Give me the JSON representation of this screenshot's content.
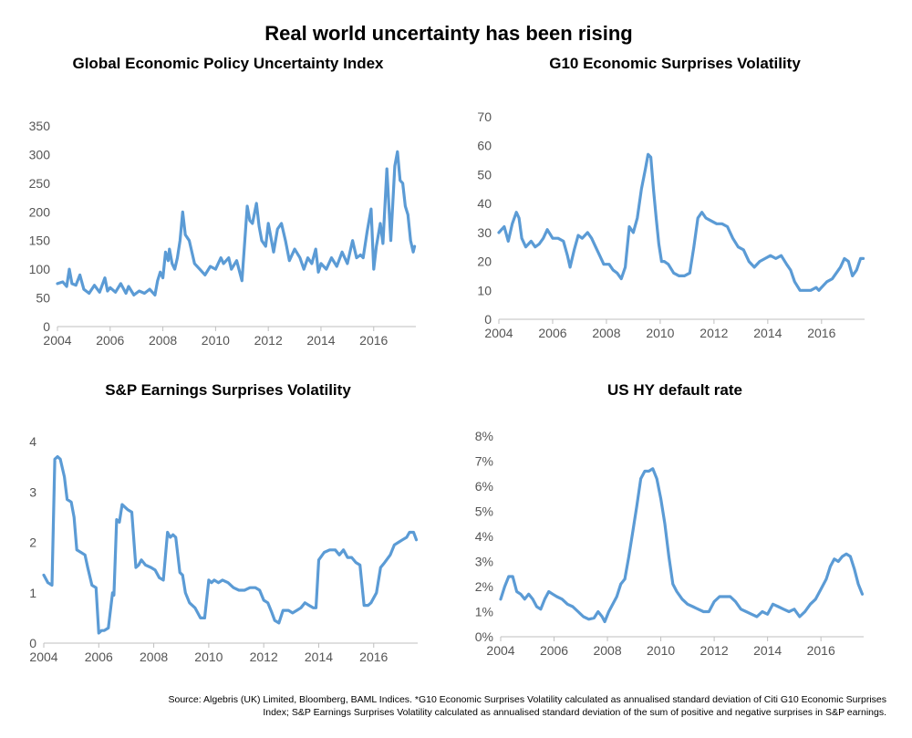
{
  "title": "Real world uncertainty has been rising",
  "footnote_line1": "Source: Algebris (UK) Limited, Bloomberg, BAML Indices. *G10 Economic Surprises Volatility calculated as annualised standard deviation of Citi G10 Economic Surprises",
  "footnote_line2": "Index; S&P Earnings Surprises Volatility calculated as annualised standard deviation of the sum of positive and negative surprises in S&P earnings.",
  "colors": {
    "line": "#5b9bd5",
    "axis": "#bfbfbf",
    "tick_text": "#555555"
  },
  "chart_data": [
    {
      "type": "line",
      "title": "Global Economic Policy Uncertainty Index",
      "xlim": [
        2004,
        2017.6
      ],
      "ylim": [
        0,
        350
      ],
      "x_ticks": [
        2004,
        2006,
        2008,
        2010,
        2012,
        2014,
        2016
      ],
      "y_ticks": [
        0,
        50,
        100,
        150,
        200,
        250,
        300,
        350
      ],
      "y_tick_labels": [
        "0",
        "50",
        "100",
        "150",
        "200",
        "250",
        "300",
        "350"
      ],
      "x_tick_labels": [
        "2004",
        "2006",
        "2008",
        "2010",
        "2012",
        "2014",
        "2016"
      ],
      "series": [
        {
          "x": [
            2004.0,
            2004.2,
            2004.35,
            2004.45,
            2004.55,
            2004.7,
            2004.85,
            2005.0,
            2005.2,
            2005.4,
            2005.6,
            2005.8,
            2005.9,
            2006.0,
            2006.2,
            2006.4,
            2006.6,
            2006.7,
            2006.9,
            2007.1,
            2007.3,
            2007.5,
            2007.7,
            2007.8,
            2007.9,
            2008.0,
            2008.1,
            2008.2,
            2008.25,
            2008.35,
            2008.45,
            2008.55,
            2008.65,
            2008.75,
            2008.85,
            2009.0,
            2009.2,
            2009.4,
            2009.6,
            2009.8,
            2010.0,
            2010.2,
            2010.3,
            2010.5,
            2010.6,
            2010.8,
            2011.0,
            2011.2,
            2011.3,
            2011.4,
            2011.55,
            2011.65,
            2011.75,
            2011.9,
            2012.0,
            2012.2,
            2012.35,
            2012.5,
            2012.65,
            2012.8,
            2013.0,
            2013.2,
            2013.35,
            2013.5,
            2013.65,
            2013.8,
            2013.9,
            2014.0,
            2014.2,
            2014.4,
            2014.6,
            2014.8,
            2015.0,
            2015.2,
            2015.35,
            2015.5,
            2015.6,
            2015.75,
            2015.9,
            2016.0,
            2016.1,
            2016.25,
            2016.35,
            2016.5,
            2016.65,
            2016.8,
            2016.9,
            2017.0,
            2017.1,
            2017.2,
            2017.3,
            2017.4,
            2017.5,
            2017.55
          ],
          "y": [
            75,
            78,
            70,
            100,
            75,
            72,
            90,
            65,
            58,
            72,
            60,
            85,
            62,
            68,
            60,
            75,
            58,
            70,
            55,
            62,
            58,
            65,
            55,
            80,
            95,
            85,
            130,
            115,
            135,
            110,
            100,
            120,
            150,
            200,
            160,
            150,
            110,
            100,
            90,
            105,
            100,
            120,
            110,
            120,
            100,
            115,
            80,
            210,
            185,
            180,
            215,
            175,
            150,
            140,
            180,
            130,
            170,
            180,
            150,
            115,
            135,
            120,
            100,
            120,
            110,
            135,
            95,
            110,
            100,
            120,
            105,
            130,
            110,
            150,
            120,
            125,
            120,
            165,
            205,
            100,
            140,
            180,
            145,
            275,
            150,
            280,
            305,
            255,
            250,
            210,
            195,
            150,
            130,
            140
          ]
        }
      ]
    },
    {
      "type": "line",
      "title": "G10 Economic Surprises Volatility",
      "xlim": [
        2004,
        2017.6
      ],
      "ylim": [
        0,
        70
      ],
      "x_ticks": [
        2004,
        2006,
        2008,
        2010,
        2012,
        2014,
        2016
      ],
      "y_ticks": [
        0,
        10,
        20,
        30,
        40,
        50,
        60,
        70
      ],
      "y_tick_labels": [
        "0",
        "10",
        "20",
        "30",
        "40",
        "50",
        "60",
        "70"
      ],
      "x_tick_labels": [
        "2004",
        "2006",
        "2008",
        "2010",
        "2012",
        "2014",
        "2016"
      ],
      "series": [
        {
          "x": [
            2004.0,
            2004.1,
            2004.2,
            2004.35,
            2004.5,
            2004.65,
            2004.75,
            2004.85,
            2005.0,
            2005.2,
            2005.35,
            2005.5,
            2005.65,
            2005.8,
            2006.0,
            2006.2,
            2006.4,
            2006.55,
            2006.65,
            2006.8,
            2006.95,
            2007.1,
            2007.3,
            2007.45,
            2007.6,
            2007.75,
            2007.9,
            2008.1,
            2008.25,
            2008.4,
            2008.55,
            2008.7,
            2008.85,
            2009.0,
            2009.15,
            2009.3,
            2009.45,
            2009.55,
            2009.65,
            2009.75,
            2009.85,
            2009.95,
            2010.05,
            2010.15,
            2010.3,
            2010.5,
            2010.7,
            2010.9,
            2011.1,
            2011.25,
            2011.4,
            2011.55,
            2011.7,
            2011.9,
            2012.1,
            2012.3,
            2012.5,
            2012.7,
            2012.9,
            2013.1,
            2013.3,
            2013.5,
            2013.7,
            2013.9,
            2014.1,
            2014.3,
            2014.5,
            2014.7,
            2014.85,
            2015.0,
            2015.2,
            2015.4,
            2015.6,
            2015.8,
            2015.9,
            2016.0,
            2016.2,
            2016.4,
            2016.55,
            2016.7,
            2016.85,
            2017.0,
            2017.15,
            2017.3,
            2017.45,
            2017.55
          ],
          "y": [
            30,
            31,
            32,
            27,
            33,
            37,
            35,
            28,
            25,
            27,
            25,
            26,
            28,
            31,
            28,
            28,
            27,
            22,
            18,
            24,
            29,
            28,
            30,
            28,
            25,
            22,
            19,
            19,
            17,
            16,
            14,
            18,
            32,
            30,
            35,
            45,
            52,
            57,
            56,
            45,
            35,
            26,
            20,
            20,
            19,
            16,
            15,
            15,
            16,
            25,
            35,
            37,
            35,
            34,
            33,
            33,
            32,
            28,
            25,
            24,
            20,
            18,
            20,
            21,
            22,
            21,
            22,
            19,
            17,
            13,
            10,
            10,
            10,
            11,
            10,
            11,
            13,
            14,
            16,
            18,
            21,
            20,
            15,
            17,
            21,
            21
          ]
        }
      ]
    },
    {
      "type": "line",
      "title": "S&P Earnings Surprises Volatility",
      "xlim": [
        2004,
        2017.6
      ],
      "ylim": [
        0,
        4
      ],
      "x_ticks": [
        2004,
        2006,
        2008,
        2010,
        2012,
        2014,
        2016
      ],
      "y_ticks": [
        0,
        1,
        2,
        3,
        4
      ],
      "y_tick_labels": [
        "0",
        "1",
        "2",
        "3",
        "4"
      ],
      "x_tick_labels": [
        "2004",
        "2006",
        "2008",
        "2010",
        "2012",
        "2014",
        "2016"
      ],
      "series": [
        {
          "x": [
            2004.0,
            2004.15,
            2004.3,
            2004.4,
            2004.5,
            2004.6,
            2004.75,
            2004.85,
            2005.0,
            2005.1,
            2005.2,
            2005.35,
            2005.5,
            2005.6,
            2005.75,
            2005.9,
            2006.0,
            2006.1,
            2006.2,
            2006.35,
            2006.5,
            2006.55,
            2006.65,
            2006.75,
            2006.85,
            2006.95,
            2007.05,
            2007.2,
            2007.35,
            2007.45,
            2007.55,
            2007.7,
            2007.9,
            2008.05,
            2008.2,
            2008.35,
            2008.5,
            2008.6,
            2008.7,
            2008.8,
            2008.95,
            2009.05,
            2009.15,
            2009.3,
            2009.5,
            2009.7,
            2009.85,
            2010.0,
            2010.1,
            2010.2,
            2010.35,
            2010.5,
            2010.7,
            2010.9,
            2011.1,
            2011.3,
            2011.5,
            2011.7,
            2011.85,
            2012.0,
            2012.15,
            2012.3,
            2012.4,
            2012.55,
            2012.7,
            2012.9,
            2013.05,
            2013.2,
            2013.35,
            2013.5,
            2013.65,
            2013.8,
            2013.9,
            2014.0,
            2014.2,
            2014.4,
            2014.6,
            2014.75,
            2014.9,
            2015.05,
            2015.2,
            2015.35,
            2015.5,
            2015.65,
            2015.8,
            2015.9,
            2016.0,
            2016.1,
            2016.25,
            2016.4,
            2016.6,
            2016.75,
            2016.9,
            2017.05,
            2017.2,
            2017.3,
            2017.45,
            2017.55
          ],
          "y": [
            1.35,
            1.2,
            1.15,
            3.65,
            3.7,
            3.65,
            3.3,
            2.85,
            2.8,
            2.5,
            1.85,
            1.8,
            1.75,
            1.5,
            1.15,
            1.1,
            0.2,
            0.25,
            0.25,
            0.3,
            1.0,
            0.95,
            2.45,
            2.4,
            2.75,
            2.7,
            2.65,
            2.6,
            1.5,
            1.55,
            1.65,
            1.55,
            1.5,
            1.45,
            1.3,
            1.25,
            2.2,
            2.1,
            2.15,
            2.1,
            1.4,
            1.35,
            1.0,
            0.8,
            0.7,
            0.5,
            0.5,
            1.25,
            1.2,
            1.25,
            1.2,
            1.25,
            1.2,
            1.1,
            1.05,
            1.05,
            1.1,
            1.1,
            1.05,
            0.85,
            0.8,
            0.6,
            0.45,
            0.4,
            0.65,
            0.65,
            0.6,
            0.65,
            0.7,
            0.8,
            0.75,
            0.7,
            0.7,
            1.65,
            1.8,
            1.85,
            1.85,
            1.75,
            1.85,
            1.7,
            1.7,
            1.6,
            1.55,
            0.75,
            0.75,
            0.8,
            0.9,
            1.0,
            1.5,
            1.6,
            1.75,
            1.95,
            2.0,
            2.05,
            2.1,
            2.2,
            2.2,
            2.05
          ]
        }
      ]
    },
    {
      "type": "line",
      "title": "US HY default rate",
      "xlim": [
        2004,
        2017.6
      ],
      "ylim": [
        0,
        8
      ],
      "x_ticks": [
        2004,
        2006,
        2008,
        2010,
        2012,
        2014,
        2016
      ],
      "y_ticks": [
        0,
        1,
        2,
        3,
        4,
        5,
        6,
        7,
        8
      ],
      "y_tick_labels": [
        "0%",
        "1%",
        "2%",
        "3%",
        "4%",
        "5%",
        "6%",
        "7%",
        "8%"
      ],
      "x_tick_labels": [
        "2004",
        "2006",
        "2008",
        "2010",
        "2012",
        "2014",
        "2016"
      ],
      "series": [
        {
          "x": [
            2004.0,
            2004.15,
            2004.3,
            2004.45,
            2004.6,
            2004.75,
            2004.9,
            2005.05,
            2005.2,
            2005.35,
            2005.5,
            2005.65,
            2005.8,
            2005.95,
            2006.1,
            2006.3,
            2006.5,
            2006.7,
            2006.9,
            2007.1,
            2007.3,
            2007.5,
            2007.65,
            2007.8,
            2007.9,
            2008.05,
            2008.2,
            2008.35,
            2008.5,
            2008.65,
            2008.8,
            2008.95,
            2009.1,
            2009.25,
            2009.4,
            2009.55,
            2009.7,
            2009.85,
            2010.0,
            2010.15,
            2010.3,
            2010.45,
            2010.6,
            2010.8,
            2011.0,
            2011.2,
            2011.4,
            2011.6,
            2011.8,
            2012.0,
            2012.2,
            2012.4,
            2012.6,
            2012.8,
            2013.0,
            2013.2,
            2013.4,
            2013.6,
            2013.8,
            2014.0,
            2014.2,
            2014.4,
            2014.6,
            2014.8,
            2015.0,
            2015.2,
            2015.4,
            2015.6,
            2015.8,
            2016.0,
            2016.2,
            2016.35,
            2016.5,
            2016.65,
            2016.8,
            2016.95,
            2017.1,
            2017.25,
            2017.4,
            2017.55
          ],
          "y": [
            1.5,
            2.0,
            2.4,
            2.4,
            1.8,
            1.7,
            1.5,
            1.7,
            1.5,
            1.2,
            1.1,
            1.5,
            1.8,
            1.7,
            1.6,
            1.5,
            1.3,
            1.2,
            1.0,
            0.8,
            0.7,
            0.75,
            1.0,
            0.8,
            0.6,
            1.0,
            1.3,
            1.6,
            2.1,
            2.3,
            3.2,
            4.2,
            5.2,
            6.3,
            6.6,
            6.6,
            6.7,
            6.3,
            5.5,
            4.5,
            3.2,
            2.1,
            1.8,
            1.5,
            1.3,
            1.2,
            1.1,
            1.0,
            1.0,
            1.4,
            1.6,
            1.6,
            1.6,
            1.4,
            1.1,
            1.0,
            0.9,
            0.8,
            1.0,
            0.9,
            1.3,
            1.2,
            1.1,
            1.0,
            1.1,
            0.8,
            1.0,
            1.3,
            1.5,
            1.9,
            2.3,
            2.8,
            3.1,
            3.0,
            3.2,
            3.3,
            3.2,
            2.7,
            2.1,
            1.7
          ]
        }
      ]
    }
  ]
}
